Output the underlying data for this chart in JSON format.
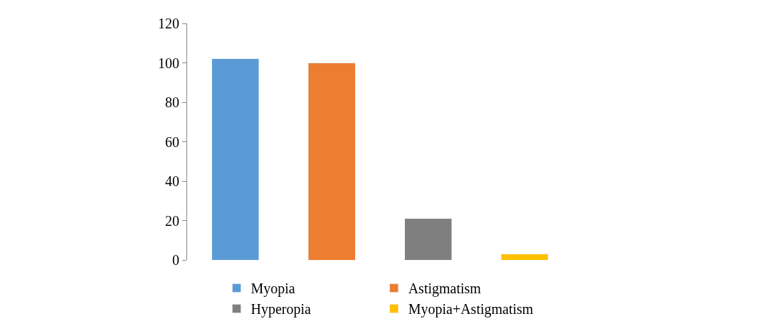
{
  "chart_data": {
    "type": "bar",
    "categories": [
      null,
      null,
      null,
      null
    ],
    "series": [
      {
        "name": "Myopia",
        "color": "#5b9bd5",
        "values": [
          102,
          null,
          null,
          null
        ]
      },
      {
        "name": "Astigmatism",
        "color": "#ed7d31",
        "values": [
          null,
          100,
          null,
          null
        ]
      },
      {
        "name": "Hyperopia",
        "color": "#7f7f7f",
        "values": [
          null,
          null,
          21,
          null
        ]
      },
      {
        "name": "Myopia+Astigmatism",
        "color": "#ffc000",
        "values": [
          null,
          null,
          null,
          3
        ]
      }
    ],
    "stacked": true,
    "ylim": [
      0,
      120
    ],
    "yticks": [
      0,
      20,
      40,
      60,
      80,
      100,
      120
    ],
    "legend": "bottom"
  }
}
